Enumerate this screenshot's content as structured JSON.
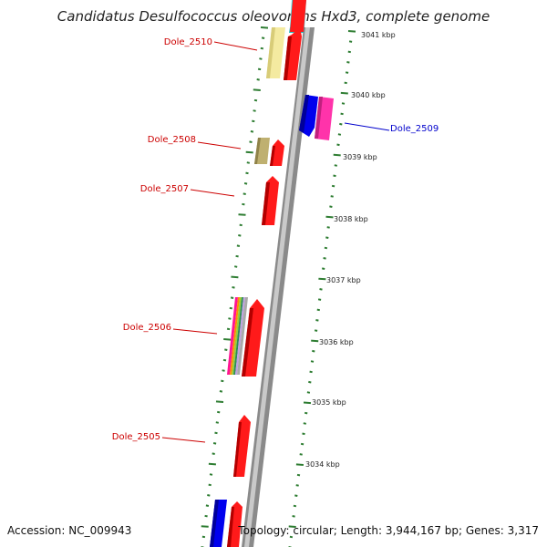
{
  "title": "Candidatus Desulfococcus oleovorans Hxd3, complete genome",
  "footer": {
    "accession": "Accession: NC_009943",
    "summary": "Topology: circular; Length: 3,944,167 bp; Genes: 3,317"
  },
  "colors": {
    "forward_label": "#cc0000",
    "reverse_label": "#0000cc",
    "backbone": "#999999",
    "tick": "#2e7d32"
  },
  "kbp_ticks": [
    "3041 kbp",
    "3040 kbp",
    "3039 kbp",
    "3038 kbp",
    "3037 kbp",
    "3036 kbp",
    "3035 kbp",
    "3034 kbp"
  ],
  "gene_labels": [
    {
      "name": "Dole_2510",
      "strand": "forward"
    },
    {
      "name": "Dole_2509",
      "strand": "reverse"
    },
    {
      "name": "Dole_2508",
      "strand": "forward"
    },
    {
      "name": "Dole_2507",
      "strand": "forward"
    },
    {
      "name": "Dole_2506",
      "strand": "forward"
    },
    {
      "name": "Dole_2505",
      "strand": "forward"
    }
  ]
}
